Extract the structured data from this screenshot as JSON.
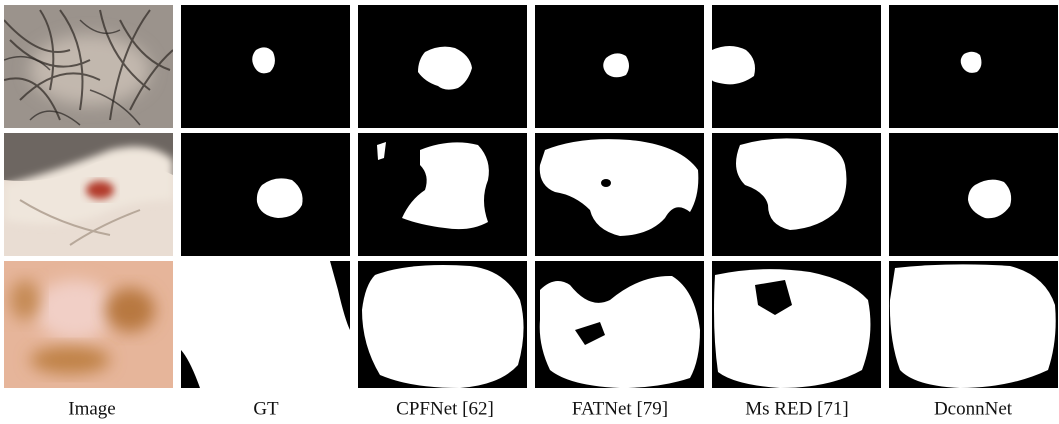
{
  "columns": [
    "Image",
    "GT",
    "CPFNet [62]",
    "FATNet [79]",
    "Ms RED [71]",
    "DconnNet"
  ]
}
